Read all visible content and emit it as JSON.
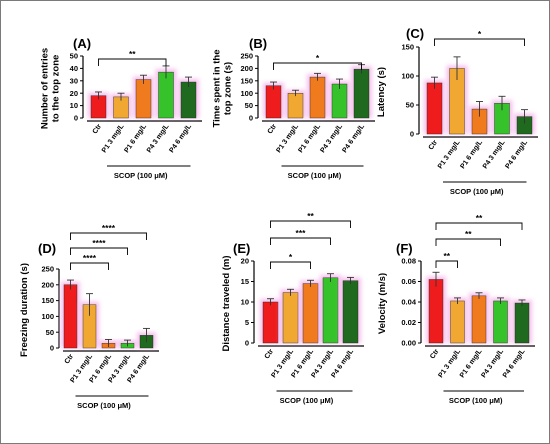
{
  "chart_data": [
    {
      "id": "A",
      "panel": "(A)",
      "type": "bar",
      "ylabel": "Number of entries\nto the top zone",
      "ylim": [
        0,
        50
      ],
      "yticks": [
        "0",
        "10",
        "20",
        "30",
        "40",
        "50"
      ],
      "categories": [
        "Ctr",
        "P1 3 mg/L",
        "P1 6 mg/L",
        "P4 3 mg/L",
        "P4 6 mg/L"
      ],
      "values": [
        18,
        17,
        31,
        37,
        29
      ],
      "errors": [
        3,
        3,
        3.5,
        5,
        4
      ],
      "group_label": "SCOP (100  μM)",
      "significance": [
        {
          "from": 0,
          "to": 3,
          "label": "**"
        }
      ]
    },
    {
      "id": "B",
      "panel": "(B)",
      "type": "bar",
      "ylabel": "Time spent in the\ntop zone  (s)",
      "ylim": [
        0,
        250
      ],
      "yticks": [
        "0",
        "50",
        "100",
        "150",
        "200",
        "250"
      ],
      "categories": [
        "Ctr",
        "P1 3 mg/L",
        "P1 6 mg/L",
        "P4 3 mg/L",
        "P4 6 mg/L"
      ],
      "values": [
        130,
        100,
        165,
        137,
        197
      ],
      "errors": [
        15,
        12,
        15,
        20,
        18
      ],
      "group_label": "SCOP (100  μM)",
      "significance": [
        {
          "from": 0,
          "to": 4,
          "label": "*"
        }
      ]
    },
    {
      "id": "C",
      "panel": "(C)",
      "type": "bar",
      "ylabel": "Latency (s)",
      "ylim": [
        0,
        150
      ],
      "yticks": [
        "0",
        "50",
        "100",
        "150"
      ],
      "categories": [
        "Ctr",
        "P1 3 mg/L",
        "P1 6 mg/L",
        "P4 3 mg/L",
        "P4 6 mg/L"
      ],
      "values": [
        88,
        113,
        43,
        53,
        30
      ],
      "errors": [
        10,
        20,
        13,
        12,
        12
      ],
      "group_label": "SCOP (100  μM)",
      "significance": [
        {
          "from": 0,
          "to": 4,
          "label": "*"
        }
      ]
    },
    {
      "id": "D",
      "panel": "(D)",
      "type": "bar",
      "ylabel": "Freezing duration (s)",
      "ylim": [
        0,
        250
      ],
      "yticks": [
        "0",
        "50",
        "100",
        "150",
        "200",
        "250"
      ],
      "categories": [
        "Ctr",
        "P1 3 mg/L",
        "P1 6 mg/L",
        "P4 3 mg/L",
        "P4 6 mg/L"
      ],
      "values": [
        200,
        137,
        15,
        15,
        40
      ],
      "errors": [
        15,
        35,
        12,
        10,
        22
      ],
      "group_label": "SCOP (100  μM)",
      "significance": [
        {
          "from": 0,
          "to": 2,
          "label": "****"
        },
        {
          "from": 0,
          "to": 3,
          "label": "****"
        },
        {
          "from": 0,
          "to": 4,
          "label": "****"
        }
      ]
    },
    {
      "id": "E",
      "panel": "(E)",
      "type": "bar",
      "ylabel": "Distance traveled (m)",
      "ylim": [
        0,
        20
      ],
      "yticks": [
        "0",
        "5",
        "10",
        "15",
        "20"
      ],
      "categories": [
        "Ctr",
        "P1 3 mg/L",
        "P1 6 mg/L",
        "P4 3 mg/L",
        "P4 6 mg/L"
      ],
      "values": [
        10,
        12.3,
        14.5,
        15.9,
        15.2
      ],
      "errors": [
        0.8,
        0.8,
        0.8,
        1.0,
        0.8
      ],
      "group_label": "SCOP (100  μM)",
      "significance": [
        {
          "from": 0,
          "to": 2,
          "label": "*"
        },
        {
          "from": 0,
          "to": 3,
          "label": "***"
        },
        {
          "from": 0,
          "to": 4,
          "label": "**"
        }
      ]
    },
    {
      "id": "F",
      "panel": "(F)",
      "type": "bar",
      "ylabel": "Velocity (m/s)",
      "ylim": [
        0,
        0.08
      ],
      "yticks": [
        "0.00",
        "0.02",
        "0.04",
        "0.06",
        "0.08"
      ],
      "categories": [
        "Ctr",
        "P1 3 mg/L",
        "P1 6 mg/L",
        "P4 3 mg/L",
        "P4 6 mg/L"
      ],
      "values": [
        0.062,
        0.041,
        0.046,
        0.041,
        0.039
      ],
      "errors": [
        0.007,
        0.003,
        0.003,
        0.003,
        0.003
      ],
      "group_label": "SCOP (100  μM)",
      "significance": [
        {
          "from": 0,
          "to": 1,
          "label": "**"
        },
        {
          "from": 0,
          "to": 3,
          "label": "**"
        },
        {
          "from": 0,
          "to": 4,
          "label": "**"
        }
      ]
    }
  ],
  "colors": {
    "bars": [
      "#ee1c1c",
      "#f0a832",
      "#f07a1e",
      "#36c22a",
      "#1f6a1f"
    ],
    "glow": "#f4b6ea",
    "axis": "#000000"
  }
}
